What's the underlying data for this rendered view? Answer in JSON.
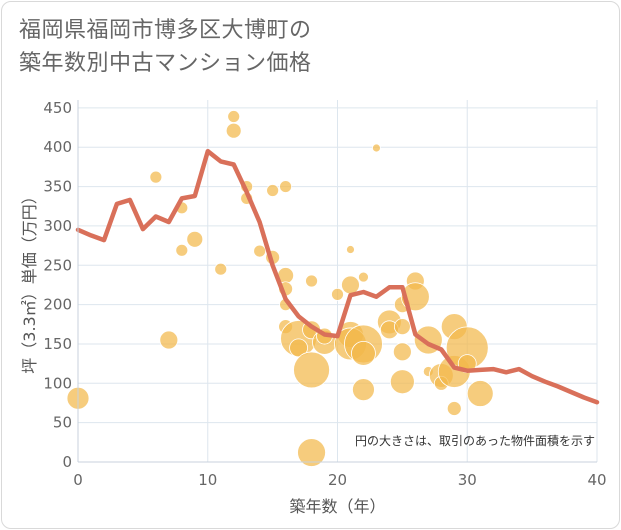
{
  "title": {
    "line1": "福岡県福岡市博多区大博町の",
    "line2": "築年数別中古マンション価格"
  },
  "chart_data": {
    "type": "scatter",
    "xlabel": "築年数（年）",
    "ylabel": "坪（3.3㎡）単価（万円）",
    "xlim": [
      0,
      40
    ],
    "ylim": [
      0,
      460
    ],
    "xticks": [
      0,
      10,
      20,
      30,
      40
    ],
    "yticks": [
      0,
      50,
      100,
      150,
      200,
      250,
      300,
      350,
      400,
      450
    ],
    "grid": true,
    "annotation": "円の大きさは、取引のあった物件面積を示す",
    "colors": {
      "bubble": "#f2b84b",
      "line": "#d9705a",
      "grid": "#dde6ee"
    },
    "bubbles": [
      {
        "x": 0,
        "y": 81,
        "s": 20
      },
      {
        "x": 6,
        "y": 362,
        "s": 10
      },
      {
        "x": 7,
        "y": 155,
        "s": 16
      },
      {
        "x": 8,
        "y": 269,
        "s": 10
      },
      {
        "x": 8,
        "y": 323,
        "s": 10
      },
      {
        "x": 9,
        "y": 283,
        "s": 14
      },
      {
        "x": 11,
        "y": 245,
        "s": 10
      },
      {
        "x": 12,
        "y": 439,
        "s": 10
      },
      {
        "x": 12,
        "y": 421,
        "s": 13
      },
      {
        "x": 13,
        "y": 350,
        "s": 10
      },
      {
        "x": 13,
        "y": 335,
        "s": 10
      },
      {
        "x": 14,
        "y": 268,
        "s": 10
      },
      {
        "x": 15,
        "y": 345,
        "s": 10
      },
      {
        "x": 15,
        "y": 260,
        "s": 12
      },
      {
        "x": 16,
        "y": 350,
        "s": 10
      },
      {
        "x": 16,
        "y": 237,
        "s": 14
      },
      {
        "x": 16,
        "y": 220,
        "s": 12
      },
      {
        "x": 16,
        "y": 200,
        "s": 10
      },
      {
        "x": 16,
        "y": 172,
        "s": 12
      },
      {
        "x": 17,
        "y": 157,
        "s": 34
      },
      {
        "x": 17,
        "y": 145,
        "s": 16
      },
      {
        "x": 18,
        "y": 117,
        "s": 34
      },
      {
        "x": 18,
        "y": 12,
        "s": 26
      },
      {
        "x": 18,
        "y": 168,
        "s": 16
      },
      {
        "x": 18,
        "y": 230,
        "s": 10
      },
      {
        "x": 19,
        "y": 152,
        "s": 22
      },
      {
        "x": 19,
        "y": 160,
        "s": 14
      },
      {
        "x": 20,
        "y": 213,
        "s": 10
      },
      {
        "x": 21,
        "y": 225,
        "s": 16
      },
      {
        "x": 21,
        "y": 270,
        "s": 6
      },
      {
        "x": 21,
        "y": 162,
        "s": 24
      },
      {
        "x": 21,
        "y": 150,
        "s": 30
      },
      {
        "x": 22,
        "y": 150,
        "s": 36
      },
      {
        "x": 22,
        "y": 138,
        "s": 22
      },
      {
        "x": 22,
        "y": 92,
        "s": 20
      },
      {
        "x": 22,
        "y": 235,
        "s": 8
      },
      {
        "x": 23,
        "y": 399,
        "s": 6
      },
      {
        "x": 24,
        "y": 178,
        "s": 22
      },
      {
        "x": 24,
        "y": 168,
        "s": 16
      },
      {
        "x": 25,
        "y": 200,
        "s": 14
      },
      {
        "x": 25,
        "y": 172,
        "s": 14
      },
      {
        "x": 25,
        "y": 140,
        "s": 16
      },
      {
        "x": 25,
        "y": 102,
        "s": 22
      },
      {
        "x": 26,
        "y": 230,
        "s": 16
      },
      {
        "x": 26,
        "y": 210,
        "s": 26
      },
      {
        "x": 27,
        "y": 155,
        "s": 26
      },
      {
        "x": 27,
        "y": 115,
        "s": 8
      },
      {
        "x": 28,
        "y": 110,
        "s": 22
      },
      {
        "x": 28,
        "y": 100,
        "s": 12
      },
      {
        "x": 29,
        "y": 172,
        "s": 24
      },
      {
        "x": 29,
        "y": 115,
        "s": 30
      },
      {
        "x": 29,
        "y": 68,
        "s": 12
      },
      {
        "x": 30,
        "y": 145,
        "s": 40
      },
      {
        "x": 30,
        "y": 125,
        "s": 16
      },
      {
        "x": 31,
        "y": 87,
        "s": 24
      }
    ],
    "line": {
      "x": [
        0,
        1,
        2,
        3,
        4,
        5,
        6,
        7,
        8,
        9,
        10,
        11,
        12,
        13,
        14,
        15,
        16,
        17,
        18,
        19,
        20,
        21,
        22,
        23,
        24,
        25,
        26,
        27,
        28,
        29,
        30,
        31,
        32,
        33,
        34,
        35,
        36,
        37,
        38,
        39,
        40
      ],
      "y": [
        295,
        288,
        282,
        328,
        333,
        296,
        312,
        305,
        335,
        338,
        395,
        382,
        378,
        343,
        305,
        250,
        207,
        185,
        172,
        162,
        160,
        212,
        216,
        210,
        222,
        222,
        162,
        150,
        143,
        120,
        116,
        117,
        118,
        114,
        118,
        109,
        102,
        96,
        89,
        82,
        76
      ]
    }
  }
}
